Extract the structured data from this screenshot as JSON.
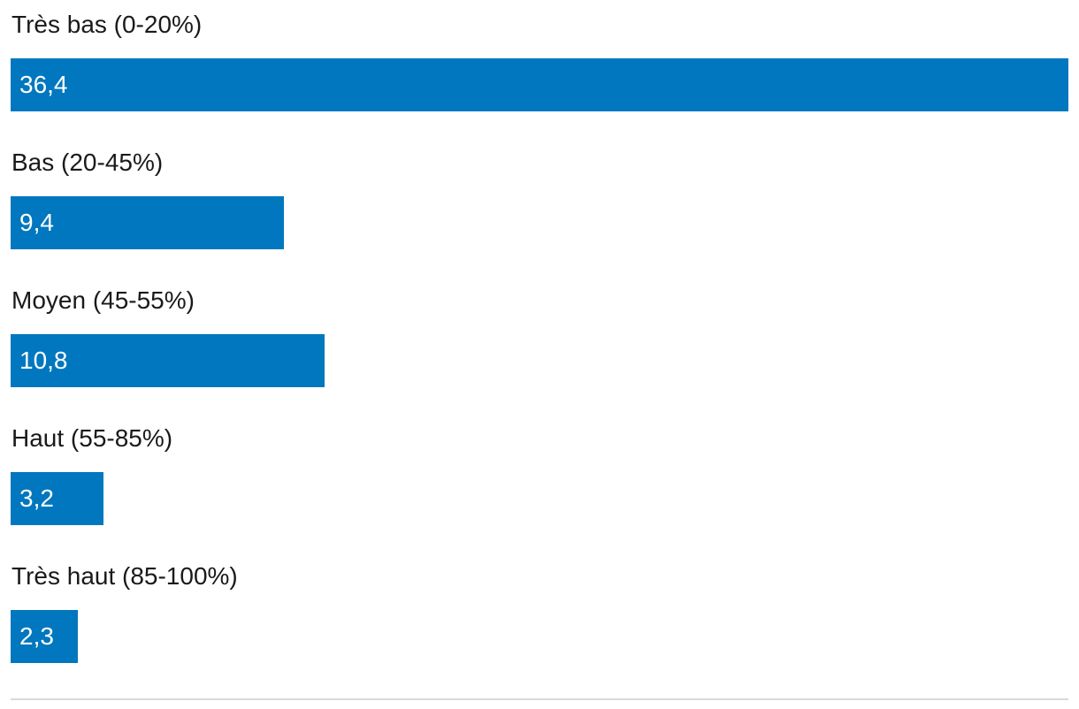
{
  "chart_data": {
    "type": "bar",
    "orientation": "horizontal",
    "categories": [
      "Très bas (0-20%)",
      "Bas (20-45%)",
      "Moyen (45-55%)",
      "Haut (55-85%)",
      "Très haut (85-100%)"
    ],
    "values": [
      36.4,
      9.4,
      10.8,
      3.2,
      2.3
    ],
    "value_labels": [
      "36,4",
      "9,4",
      "10,8",
      "3,2",
      "2,3"
    ],
    "xlim": [
      0,
      36.4
    ],
    "grid": false,
    "legend": "none",
    "bar_color": "#0077be",
    "label_color": "#ffffff",
    "text_color": "#1a1a1a",
    "baseline_color": "#d9d9d9"
  }
}
